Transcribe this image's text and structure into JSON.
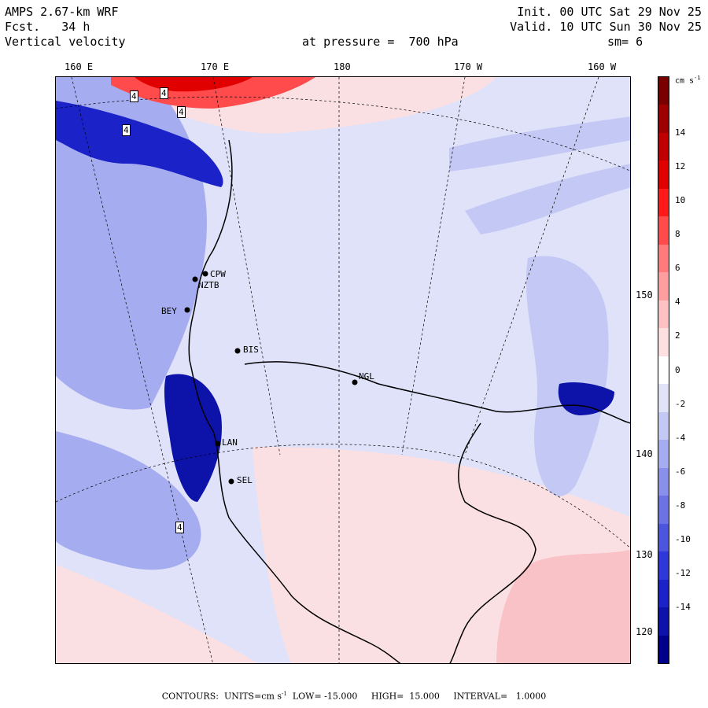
{
  "header": {
    "model": "AMPS 2.67-km WRF",
    "fcst": "Fcst.   34 h",
    "field": "Vertical velocity",
    "init": "Init. 00 UTC Sat 29 Nov 25",
    "valid": "Valid. 10 UTC Sun 30 Nov 25",
    "pressure": "at pressure =  700 hPa",
    "smoothing": "sm= 6"
  },
  "longitude_labels": [
    "160 E",
    "170 E",
    "180",
    "170 W",
    "160 W"
  ],
  "right_lon_labels": [
    "150 W",
    "140 W",
    "130 W",
    "120 W"
  ],
  "stations": [
    "CPW",
    "NZTB",
    "BEY",
    "BIS",
    "NGL",
    "LAN",
    "SEL"
  ],
  "contour_labels": [
    "4",
    "4",
    "4",
    "4",
    "4"
  ],
  "colorbar": {
    "units": "cm s",
    "units_exp": "-1",
    "labels": [
      "14",
      "12",
      "10",
      "8",
      "6",
      "4",
      "2",
      "0",
      "-2",
      "-4",
      "-6",
      "-8",
      "-10",
      "-12",
      "-14"
    ],
    "colors": [
      "#7a0000",
      "#9e0000",
      "#c00000",
      "#e00000",
      "#ff1a1a",
      "#ff4b4b",
      "#ff7a7a",
      "#ff9e9e",
      "#ffc2c2",
      "#ffe0e0",
      "#ffffff",
      "#e1e3f8",
      "#c4c8f4",
      "#a6acf0",
      "#8890ea",
      "#6a72e4",
      "#4c55de",
      "#2e38d8",
      "#1a22c8",
      "#0d12a8",
      "#00008a"
    ]
  },
  "footer": {
    "text1": "CONTOURS:  UNITS=cm s",
    "exp": "-1",
    "text2": "  LOW= -15.000     HIGH=  15.000     INTERVAL=   1.0000"
  }
}
